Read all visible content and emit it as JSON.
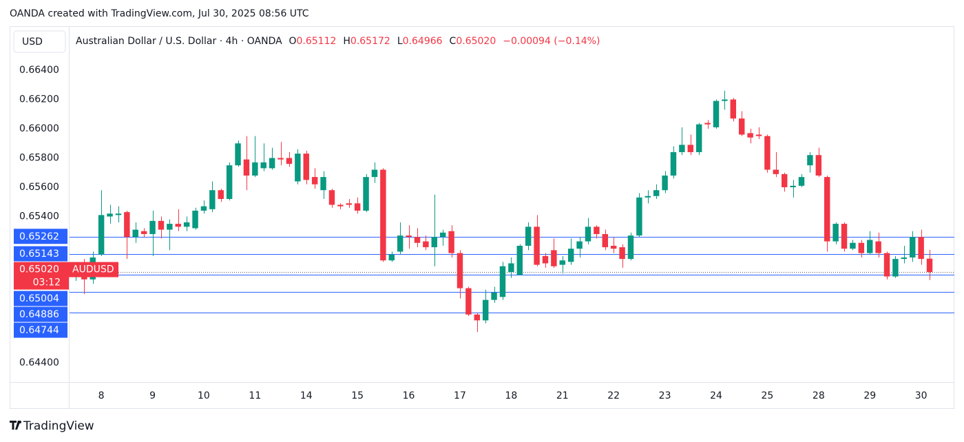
{
  "header": "OANDA created with TradingView.com, Jul 30, 2025 08:56 UTC",
  "footer": "TradingView",
  "chart_data": {
    "type": "candlestick",
    "currency": "USD",
    "title": "Australian Dollar / U.S. Dollar · 4h · OANDA",
    "ohlc_legend": [
      {
        "label": "O",
        "value": "0.65112"
      },
      {
        "label": "H",
        "value": "0.65172"
      },
      {
        "label": "L",
        "value": "0.64966"
      },
      {
        "label": "C",
        "value": "0.65020"
      }
    ],
    "change": "−0.00094 (−0.14%)",
    "up_color": "#089981",
    "down_color": "#f23645",
    "open": [
      0.65,
      0.6505,
      0.6497,
      0.6514,
      0.654,
      0.6541,
      0.6543,
      0.6526,
      0.653,
      0.6528,
      0.6537,
      0.6531,
      0.6535,
      0.6533,
      0.6532,
      0.6544,
      0.6545,
      0.6558,
      0.6552,
      0.6575,
      0.6579,
      0.6568,
      0.6573,
      0.6573,
      0.658,
      0.658,
      0.6564,
      0.6583,
      0.6567,
      0.6558,
      0.6558,
      0.6548,
      0.6549,
      0.6549,
      0.6544,
      0.6567,
      0.6572,
      0.651,
      0.6516,
      0.6527,
      0.6526,
      0.6523,
      0.6519,
      0.6526,
      0.653,
      0.6515,
      0.6491,
      0.6473,
      0.6469,
      0.6483,
      0.6485,
      0.6502,
      0.65,
      0.652,
      0.6533,
      0.6513,
      0.6517,
      0.6507,
      0.6509,
      0.6518,
      0.6523,
      0.6533,
      0.6528,
      0.652,
      0.6519,
      0.6511,
      0.6527,
      0.6553,
      0.6554,
      0.6558,
      0.6568,
      0.6584,
      0.6589,
      0.6584,
      0.6604,
      0.6601,
      0.6619,
      0.662,
      0.6607,
      0.6597,
      0.6596,
      0.6595,
      0.6572,
      0.6569,
      0.656,
      0.6561,
      0.6575,
      0.6582,
      0.6567,
      0.6523,
      0.6535,
      0.6518,
      0.6522,
      0.6515,
      0.6523,
      0.6515,
      0.6499,
      0.6511,
      0.6512,
      0.6526,
      0.65112
    ],
    "high": [
      0.6508,
      0.6511,
      0.6516,
      0.6558,
      0.6548,
      0.6547,
      0.6544,
      0.6536,
      0.6532,
      0.6544,
      0.654,
      0.6538,
      0.6545,
      0.654,
      0.6546,
      0.6551,
      0.6564,
      0.6559,
      0.6577,
      0.6592,
      0.6595,
      0.6595,
      0.659,
      0.6587,
      0.6591,
      0.6584,
      0.6586,
      0.6585,
      0.6573,
      0.6571,
      0.6559,
      0.6549,
      0.6552,
      0.6553,
      0.6569,
      0.6577,
      0.6573,
      0.6516,
      0.6536,
      0.6534,
      0.6532,
      0.6527,
      0.6555,
      0.6531,
      0.6534,
      0.6517,
      0.6492,
      0.6474,
      0.649,
      0.6492,
      0.6509,
      0.6512,
      0.6521,
      0.6536,
      0.6541,
      0.6515,
      0.6525,
      0.6513,
      0.6525,
      0.6526,
      0.6539,
      0.6534,
      0.6531,
      0.6526,
      0.6521,
      0.6529,
      0.6556,
      0.6558,
      0.6562,
      0.6571,
      0.6588,
      0.6601,
      0.6596,
      0.6604,
      0.6606,
      0.662,
      0.6626,
      0.6621,
      0.6612,
      0.66,
      0.6601,
      0.6596,
      0.6584,
      0.657,
      0.6565,
      0.6569,
      0.6584,
      0.6587,
      0.6568,
      0.6536,
      0.6536,
      0.6524,
      0.6524,
      0.653,
      0.6529,
      0.6516,
      0.6513,
      0.652,
      0.653,
      0.6531,
      0.65172
    ],
    "low": [
      0.6496,
      0.6487,
      0.6494,
      0.6513,
      0.6535,
      0.6536,
      0.6511,
      0.6522,
      0.6526,
      0.6513,
      0.6525,
      0.6517,
      0.653,
      0.653,
      0.6531,
      0.6542,
      0.6543,
      0.655,
      0.6551,
      0.6574,
      0.6558,
      0.6567,
      0.6571,
      0.6572,
      0.6575,
      0.6574,
      0.6562,
      0.6562,
      0.6559,
      0.6552,
      0.6546,
      0.6545,
      0.6546,
      0.6542,
      0.6543,
      0.6563,
      0.6509,
      0.6509,
      0.6514,
      0.6518,
      0.6519,
      0.6517,
      0.6506,
      0.652,
      0.6512,
      0.6484,
      0.6472,
      0.6461,
      0.6467,
      0.6481,
      0.6483,
      0.6498,
      0.65,
      0.6517,
      0.6506,
      0.6505,
      0.6505,
      0.6501,
      0.6507,
      0.6512,
      0.6521,
      0.6525,
      0.6517,
      0.6515,
      0.6505,
      0.651,
      0.6526,
      0.6549,
      0.6552,
      0.6556,
      0.6566,
      0.6582,
      0.6582,
      0.6582,
      0.66,
      0.66,
      0.6613,
      0.6605,
      0.6595,
      0.659,
      0.6593,
      0.657,
      0.6567,
      0.6557,
      0.6553,
      0.656,
      0.657,
      0.6567,
      0.6516,
      0.6521,
      0.6516,
      0.6517,
      0.6512,
      0.6514,
      0.6512,
      0.6497,
      0.6498,
      0.6508,
      0.6509,
      0.6507,
      0.64966
    ],
    "close": [
      0.6505,
      0.6497,
      0.6512,
      0.6541,
      0.6542,
      0.6542,
      0.6526,
      0.6531,
      0.6528,
      0.6537,
      0.6531,
      0.6535,
      0.6533,
      0.6536,
      0.6544,
      0.6547,
      0.6558,
      0.6552,
      0.6575,
      0.659,
      0.6568,
      0.6577,
      0.6577,
      0.658,
      0.6579,
      0.6576,
      0.6583,
      0.6565,
      0.6562,
      0.6567,
      0.6548,
      0.6547,
      0.6548,
      0.6544,
      0.6567,
      0.6572,
      0.651,
      0.6514,
      0.6527,
      0.6526,
      0.6522,
      0.6519,
      0.6526,
      0.6529,
      0.6515,
      0.6491,
      0.6473,
      0.6469,
      0.6483,
      0.6488,
      0.6506,
      0.6508,
      0.652,
      0.6533,
      0.6507,
      0.6508,
      0.6506,
      0.651,
      0.6518,
      0.6523,
      0.6533,
      0.6528,
      0.6519,
      0.6518,
      0.6511,
      0.6527,
      0.6553,
      0.6554,
      0.6558,
      0.6568,
      0.6584,
      0.6589,
      0.6584,
      0.6603,
      0.6603,
      0.6619,
      0.662,
      0.6607,
      0.6596,
      0.6594,
      0.6595,
      0.6572,
      0.6569,
      0.656,
      0.6561,
      0.6567,
      0.6582,
      0.6568,
      0.6523,
      0.6535,
      0.6518,
      0.6522,
      0.6515,
      0.6524,
      0.6515,
      0.6499,
      0.6511,
      0.6512,
      0.6526,
      0.6511,
      0.6502
    ],
    "xlim": [
      -0.8,
      102.9
    ],
    "xticks": [
      {
        "value": 3,
        "label": "8"
      },
      {
        "value": 9,
        "label": "9"
      },
      {
        "value": 15,
        "label": "10"
      },
      {
        "value": 21,
        "label": "11"
      },
      {
        "value": 27,
        "label": "14"
      },
      {
        "value": 33,
        "label": "15"
      },
      {
        "value": 39,
        "label": "16"
      },
      {
        "value": 45,
        "label": "17"
      },
      {
        "value": 51,
        "label": "18"
      },
      {
        "value": 57,
        "label": "21"
      },
      {
        "value": 63,
        "label": "22"
      },
      {
        "value": 69,
        "label": "23"
      },
      {
        "value": 75,
        "label": "24"
      },
      {
        "value": 81,
        "label": "25"
      },
      {
        "value": 87,
        "label": "28"
      },
      {
        "value": 93,
        "label": "29"
      },
      {
        "value": 99,
        "label": "30"
      }
    ],
    "ylim": [
      0.64268,
      0.66673
    ],
    "yticks": [
      {
        "value": 0.664,
        "label": "0.66400"
      },
      {
        "value": 0.662,
        "label": "0.66200"
      },
      {
        "value": 0.66,
        "label": "0.66000"
      },
      {
        "value": 0.658,
        "label": "0.65800"
      },
      {
        "value": 0.656,
        "label": "0.65600"
      },
      {
        "value": 0.654,
        "label": "0.65400"
      },
      {
        "value": 0.644,
        "label": "0.64400"
      }
    ],
    "line_color": "#2962ff",
    "price_lines": [
      {
        "value": 0.65262,
        "label": "0.65262"
      },
      {
        "value": 0.65143,
        "label": "0.65143"
      },
      {
        "value": 0.65004,
        "label": "0.65004"
      },
      {
        "value": 0.64886,
        "label": "0.64886"
      },
      {
        "value": 0.64744,
        "label": "0.64744"
      }
    ],
    "last_price": {
      "value": 0.6502,
      "label": "0.65020",
      "symbol": "AUDUSD",
      "countdown": "03:12"
    }
  }
}
